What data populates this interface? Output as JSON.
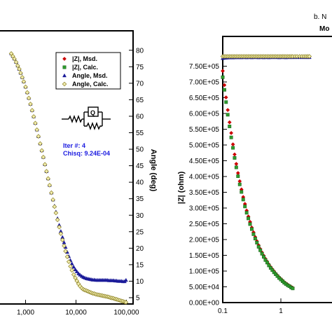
{
  "header": {
    "figure_label": "b. N",
    "model_label": "Mo"
  },
  "chart_data": [
    {
      "type": "scatter",
      "title": "",
      "x_scale": "log",
      "y2label": "Angle (deg)",
      "xlim": [
        500,
        100000
      ],
      "y2lim": [
        3,
        84
      ],
      "x_ticks": [
        1000,
        10000,
        100000
      ],
      "x_tick_labels": [
        "1,000",
        "10,000",
        "100,000"
      ],
      "y2_ticks": [
        5,
        10,
        15,
        20,
        25,
        30,
        35,
        40,
        45,
        50,
        55,
        60,
        65,
        70,
        75,
        80
      ],
      "y2_tick_labels": [
        "5",
        "10",
        "15",
        "20",
        "25",
        "30",
        "35",
        "40",
        "45",
        "50",
        "55",
        "60",
        "65",
        "70",
        "75",
        "80"
      ],
      "legend": {
        "position": "top-right",
        "entries": [
          {
            "label": "|Z|,  Msd.",
            "marker": "diamond",
            "color": "#cc0000"
          },
          {
            "label": "|Z|,  Calc.",
            "marker": "square",
            "color": "#2e9b2e"
          },
          {
            "label": "Angle,  Msd.",
            "marker": "triangle",
            "color": "#1a1a99"
          },
          {
            "label": "Angle,  Calc.",
            "marker": "diamond-open",
            "color": "#b5a832"
          }
        ]
      },
      "fit_info": {
        "iter": "Iter #: 4",
        "chisq": "Chisq: 9.24E-04"
      },
      "circuit_label": "Q",
      "series": [
        {
          "name": "Angle,  Msd.",
          "x": [
            520,
            560,
            600,
            650,
            700,
            750,
            800,
            860,
            920,
            1000,
            1080,
            1160,
            1250,
            1350,
            1450,
            1560,
            1680,
            1800,
            1950,
            2100,
            2250,
            2420,
            2600,
            2800,
            3000,
            3250,
            3500,
            3750,
            4000,
            4300,
            4650,
            5000,
            5400,
            5800,
            6200,
            6700,
            7200,
            7750,
            8300,
            9000,
            9700,
            10400,
            11200,
            12000,
            13000,
            14000,
            15000,
            16200,
            17400,
            18700,
            20000,
            21500,
            23200,
            25000,
            27000,
            29000,
            31200,
            33500,
            36000,
            38700,
            41600,
            44700,
            48000,
            51600,
            55500,
            59600,
            64000,
            68800,
            74000,
            79500,
            85500,
            92000,
            98000
          ],
          "y": [
            79.0,
            78.2,
            77.4,
            76.4,
            75.3,
            74.3,
            73.1,
            71.8,
            70.5,
            68.9,
            67.2,
            65.5,
            63.7,
            61.8,
            59.9,
            57.9,
            55.9,
            53.9,
            51.7,
            49.6,
            47.6,
            45.4,
            43.3,
            41.1,
            39.1,
            36.8,
            34.7,
            32.8,
            31.0,
            29.0,
            27.0,
            25.1,
            23.3,
            21.7,
            20.3,
            18.8,
            17.5,
            16.3,
            15.3,
            14.3,
            13.5,
            12.9,
            12.3,
            11.9,
            11.5,
            11.2,
            11.0,
            10.8,
            10.7,
            10.6,
            10.5,
            10.4,
            10.4,
            10.3,
            10.3,
            10.3,
            10.3,
            10.3,
            10.3,
            10.3,
            10.3,
            10.2,
            10.2,
            10.2,
            10.2,
            10.1,
            10.1,
            10.0,
            10.0,
            10.0,
            9.9,
            9.9,
            10.3
          ]
        },
        {
          "name": "Angle,  Calc.",
          "x": [
            520,
            560,
            600,
            650,
            700,
            750,
            800,
            860,
            920,
            1000,
            1080,
            1160,
            1250,
            1350,
            1450,
            1560,
            1680,
            1800,
            1950,
            2100,
            2250,
            2420,
            2600,
            2800,
            3000,
            3250,
            3500,
            3750,
            4000,
            4300,
            4650,
            5000,
            5400,
            5800,
            6200,
            6700,
            7200,
            7750,
            8300,
            9000,
            9700,
            10400,
            11200,
            12000,
            13000,
            14000,
            15000,
            16200,
            17400,
            18700,
            20000,
            21500,
            23200,
            25000,
            27000,
            29000,
            31200,
            33500,
            36000,
            38700,
            41600,
            44700,
            48000,
            51600,
            55500,
            59600,
            64000,
            68800,
            74000,
            79500,
            85500,
            92000,
            98000
          ],
          "y": [
            79.0,
            78.2,
            77.4,
            76.4,
            75.3,
            74.3,
            73.1,
            71.8,
            70.5,
            68.9,
            67.2,
            65.5,
            63.7,
            61.8,
            59.9,
            57.9,
            55.9,
            53.9,
            51.7,
            49.6,
            47.6,
            45.4,
            43.3,
            41.1,
            39.1,
            36.8,
            34.7,
            32.6,
            30.7,
            28.6,
            26.4,
            24.4,
            22.5,
            20.7,
            19.1,
            17.4,
            15.9,
            14.5,
            13.3,
            12.0,
            11.0,
            10.1,
            9.2,
            8.5,
            7.9,
            7.5,
            7.3,
            7.1,
            6.9,
            6.7,
            6.5,
            6.3,
            6.2,
            6.0,
            5.9,
            5.8,
            5.7,
            5.6,
            5.5,
            5.4,
            5.3,
            5.2,
            5.0,
            4.9,
            4.8,
            4.6,
            4.5,
            4.3,
            4.2,
            4.0,
            3.9,
            3.7,
            3.6
          ]
        }
      ]
    },
    {
      "type": "scatter",
      "title": "",
      "x_scale": "log",
      "ylabel": "|Z| (ohm)",
      "xlim": [
        0.1,
        10
      ],
      "ylim": [
        0,
        780000
      ],
      "x_ticks": [
        0.1,
        1
      ],
      "x_tick_labels": [
        "0.1",
        "1"
      ],
      "y_ticks": [
        0,
        50000,
        100000,
        150000,
        200000,
        250000,
        300000,
        350000,
        400000,
        450000,
        500000,
        550000,
        600000,
        650000,
        700000,
        750000
      ],
      "y_tick_labels": [
        "0.00E+00",
        "5.00E+04",
        "1.00E+05",
        "1.50E+05",
        "2.00E+05",
        "2.50E+05",
        "3.00E+05",
        "3.50E+05",
        "4.00E+05",
        "4.50E+05",
        "5.00E+05",
        "5.50E+05",
        "6.00E+05",
        "6.50E+05",
        "7.00E+05",
        "7.50E+05"
      ],
      "series": [
        {
          "name": "|Z|,  Msd.",
          "x": [
            0.1,
            0.107,
            0.114,
            0.122,
            0.131,
            0.14,
            0.15,
            0.16,
            0.171,
            0.183,
            0.196,
            0.21,
            0.225,
            0.241,
            0.258,
            0.276,
            0.295,
            0.316,
            0.338,
            0.362,
            0.387,
            0.414,
            0.443,
            0.474,
            0.507,
            0.543,
            0.581,
            0.622,
            0.666,
            0.712,
            0.762,
            0.815,
            0.872,
            0.934,
            1.0,
            1.07,
            1.14,
            1.22,
            1.31,
            1.4,
            1.5,
            1.6
          ],
          "y": [
            735000,
            690000,
            651000,
            611000,
            572000,
            538000,
            502000,
            470000,
            440000,
            411000,
            385000,
            359000,
            335000,
            313000,
            292000,
            273000,
            256000,
            238000,
            223000,
            208000,
            195000,
            182000,
            170000,
            159000,
            149000,
            139000,
            130000,
            121000,
            113000,
            106000,
            99000,
            92000,
            86000,
            80000,
            75000,
            70000,
            65000,
            61000,
            57000,
            53000,
            50000,
            47000
          ]
        },
        {
          "name": "|Z|,  Calc.",
          "x": [
            0.1,
            0.107,
            0.114,
            0.122,
            0.131,
            0.14,
            0.15,
            0.16,
            0.171,
            0.183,
            0.196,
            0.21,
            0.225,
            0.241,
            0.258,
            0.276,
            0.295,
            0.316,
            0.338,
            0.362,
            0.387,
            0.414,
            0.443,
            0.474,
            0.507,
            0.543,
            0.581,
            0.622,
            0.666,
            0.712,
            0.762,
            0.815,
            0.872,
            0.934,
            1.0,
            1.07,
            1.14,
            1.22,
            1.31,
            1.4,
            1.5,
            1.6
          ],
          "y": [
            715000,
            675000,
            636000,
            596000,
            559000,
            524000,
            491000,
            459000,
            429000,
            401000,
            375000,
            351000,
            327000,
            305000,
            285000,
            267000,
            249000,
            233000,
            217000,
            203000,
            190000,
            177000,
            166000,
            155000,
            145000,
            135000,
            127000,
            118000,
            110000,
            103000,
            96000,
            90000,
            84000,
            78000,
            73000,
            68000,
            63000,
            59000,
            55000,
            52000,
            48000,
            45000
          ]
        },
        {
          "name": "Angle,  Msd.",
          "x": [
            0.1,
            0.107,
            0.114,
            0.122,
            0.131,
            0.14,
            0.15,
            0.16,
            0.171,
            0.183,
            0.196,
            0.21,
            0.225,
            0.241,
            0.258,
            0.276,
            0.295,
            0.316,
            0.338,
            0.362,
            0.387,
            0.414,
            0.443,
            0.474,
            0.507,
            0.543,
            0.581,
            0.622,
            0.666,
            0.712,
            0.762,
            0.815,
            0.872,
            0.934,
            1.0,
            1.07,
            1.14,
            1.22,
            1.31,
            1.4,
            1.5,
            1.6,
            1.75,
            1.9,
            2.1,
            2.3,
            2.5,
            2.7,
            2.9,
            3.1
          ],
          "y": [
            775000,
            776000,
            776500,
            777000,
            777000,
            777500,
            777000,
            777500,
            778000,
            777500,
            778000,
            777500,
            778000,
            778000,
            777500,
            778000,
            778000,
            777500,
            778000,
            778000,
            778000,
            777500,
            778000,
            778000,
            777500,
            778000,
            778000,
            777500,
            778000,
            778000,
            778000,
            778000,
            778000,
            777500,
            778000,
            778000,
            778000,
            777500,
            778000,
            778000,
            778000,
            778000,
            778000,
            778000,
            778000,
            778000,
            778000,
            778000,
            778000,
            778000
          ]
        },
        {
          "name": "Angle,  Calc.",
          "x": [
            0.1,
            0.107,
            0.114,
            0.122,
            0.131,
            0.14,
            0.15,
            0.16,
            0.171,
            0.183,
            0.196,
            0.21,
            0.225,
            0.241,
            0.258,
            0.276,
            0.295,
            0.316,
            0.338,
            0.362,
            0.387,
            0.414,
            0.443,
            0.474,
            0.507,
            0.543,
            0.581,
            0.622,
            0.666,
            0.712,
            0.762,
            0.815,
            0.872,
            0.934,
            1.0,
            1.07,
            1.14,
            1.22,
            1.31,
            1.4,
            1.5,
            1.6,
            1.75,
            1.9,
            2.1,
            2.3,
            2.5,
            2.7,
            2.9,
            3.1
          ],
          "y": [
            781000,
            781000,
            781000,
            781000,
            781000,
            781000,
            781000,
            781000,
            781000,
            781000,
            781000,
            781000,
            781000,
            781000,
            781000,
            781000,
            781000,
            781000,
            781000,
            781000,
            781000,
            781000,
            781000,
            781000,
            781000,
            781000,
            781000,
            781000,
            781000,
            781000,
            781000,
            781000,
            781000,
            781000,
            781000,
            781000,
            781000,
            781000,
            781000,
            781000,
            781000,
            781000,
            781000,
            781000,
            781000,
            781000,
            781000,
            781000,
            781000,
            781000
          ]
        }
      ]
    }
  ]
}
